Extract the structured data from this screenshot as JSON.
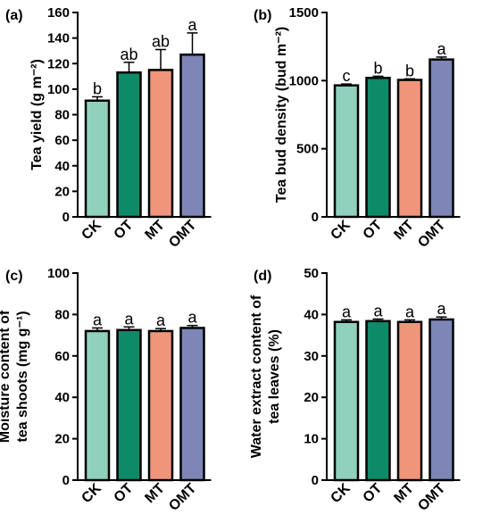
{
  "colors": {
    "CK": "#8fd1bc",
    "OT": "#0d8a68",
    "MT": "#f0957a",
    "OMT": "#7d86b7",
    "axis": "#000000"
  },
  "chart_data": [
    {
      "type": "bar",
      "panel_label": "(a)",
      "ylabel_lines": [
        "Tea yield (g m⁻²)"
      ],
      "categories": [
        "CK",
        "OT",
        "MT",
        "OMT"
      ],
      "values": [
        91,
        113,
        115,
        127
      ],
      "errors": [
        3,
        8,
        16,
        17
      ],
      "significance": [
        "b",
        "ab",
        "ab",
        "a"
      ],
      "ylim": [
        0,
        160
      ],
      "yticks": [
        0,
        20,
        40,
        60,
        80,
        100,
        120,
        140,
        160
      ]
    },
    {
      "type": "bar",
      "panel_label": "(b)",
      "ylabel_lines": [
        "Tea bud density (bud m⁻²)"
      ],
      "categories": [
        "CK",
        "OT",
        "MT",
        "OMT"
      ],
      "values": [
        965,
        1020,
        1005,
        1155
      ],
      "errors": [
        10,
        12,
        8,
        18
      ],
      "significance": [
        "c",
        "b",
        "b",
        "a"
      ],
      "ylim": [
        0,
        1500
      ],
      "yticks": [
        0,
        500,
        1000,
        1500
      ]
    },
    {
      "type": "bar",
      "panel_label": "(c)",
      "ylabel_lines": [
        "Moisture content of",
        "tea shoots (mg g⁻¹)"
      ],
      "categories": [
        "CK",
        "OT",
        "MT",
        "OMT"
      ],
      "values": [
        72,
        72.5,
        72,
        73.5
      ],
      "errors": [
        1.5,
        1.5,
        1.2,
        1.2
      ],
      "significance": [
        "a",
        "a",
        "a",
        "a"
      ],
      "ylim": [
        0,
        100
      ],
      "yticks": [
        0,
        20,
        40,
        60,
        80,
        100
      ]
    },
    {
      "type": "bar",
      "panel_label": "(d)",
      "ylabel_lines": [
        "Water extract content of",
        "tea leaves (%)"
      ],
      "categories": [
        "CK",
        "OT",
        "MT",
        "OMT"
      ],
      "values": [
        38.2,
        38.4,
        38.2,
        38.8
      ],
      "errors": [
        0.5,
        0.5,
        0.5,
        0.6
      ],
      "significance": [
        "a",
        "a",
        "a",
        "a"
      ],
      "ylim": [
        0,
        50
      ],
      "yticks": [
        0,
        10,
        20,
        30,
        40,
        50
      ]
    }
  ]
}
